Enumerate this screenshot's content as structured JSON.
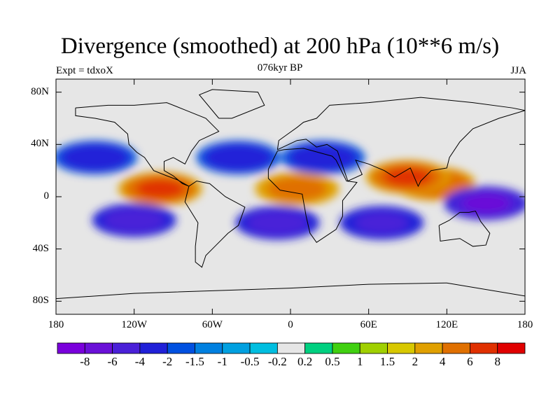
{
  "title": "Divergence (smoothed) at 200 hPa (10**6 m/s)",
  "subtitle_left": "Expt = tdxoX",
  "subtitle_center": "076kyr BP",
  "subtitle_right": "JJA",
  "lat_labels": [
    "80N",
    "40N",
    "0",
    "40S",
    "80S"
  ],
  "lon_labels": [
    "180",
    "120W",
    "60W",
    "0",
    "60E",
    "120E",
    "180"
  ],
  "colorbar": {
    "colors": [
      "#7a00dc",
      "#6a10d8",
      "#4a20d8",
      "#2020d8",
      "#0050e0",
      "#0080e0",
      "#00a0e0",
      "#00bee0",
      "#e6e6e6",
      "#00d080",
      "#40d010",
      "#a0d000",
      "#d8c800",
      "#e0a000",
      "#e07000",
      "#e03000",
      "#e00000"
    ],
    "labels": [
      "-8",
      "-6",
      "-4",
      "-2",
      "-1.5",
      "-1",
      "-0.5",
      "-0.2",
      "0.2",
      "0.5",
      "1",
      "1.5",
      "2",
      "4",
      "6",
      "8"
    ]
  },
  "chart_data": {
    "type": "heatmap",
    "title": "Divergence (smoothed) at 200 hPa (10**6 m/s)",
    "xlim": [
      -180,
      180
    ],
    "ylim": [
      -90,
      90
    ],
    "levels": [
      -8,
      -6,
      -4,
      -2,
      -1.5,
      -1,
      -0.5,
      -0.2,
      0.2,
      0.5,
      1,
      1.5,
      2,
      4,
      6,
      8
    ],
    "features": [
      {
        "name": "equatorial-east-pacific-divergence",
        "lon": -100,
        "lat": 6,
        "value": 7
      },
      {
        "name": "maritime-continent-divergence",
        "lon": 110,
        "lat": 10,
        "value": 6
      },
      {
        "name": "africa-divergence",
        "lon": 5,
        "lat": 6,
        "value": 5
      },
      {
        "name": "south-asia-divergence",
        "lon": 90,
        "lat": 15,
        "value": 7
      },
      {
        "name": "south-pacific-convergence",
        "lon": -120,
        "lat": -18,
        "value": -5
      },
      {
        "name": "south-atlantic-convergence",
        "lon": -10,
        "lat": -20,
        "value": -5
      },
      {
        "name": "indian-ocean-convergence",
        "lon": 70,
        "lat": -20,
        "value": -4
      },
      {
        "name": "north-pacific-convergence",
        "lon": -150,
        "lat": 30,
        "value": -3
      },
      {
        "name": "north-atlantic-convergence",
        "lon": -40,
        "lat": 30,
        "value": -3
      },
      {
        "name": "sahara-convergence",
        "lon": 25,
        "lat": 30,
        "value": -3
      },
      {
        "name": "west-pacific-south-convergence",
        "lon": 150,
        "lat": -5,
        "value": -6
      }
    ]
  }
}
